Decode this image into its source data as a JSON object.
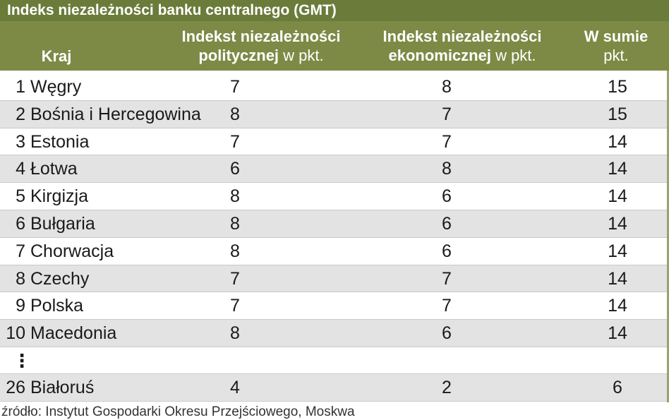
{
  "title": "Indeks niezależności banku centralnego (GMT)",
  "headers": {
    "kraj": "Kraj",
    "pol_line1": "Indekst niezależności",
    "pol_line2_bold": "politycznej",
    "pol_line2_unit": " w pkt.",
    "eko_line1": "Indekst niezależności",
    "eko_line2_bold": "ekonomicznej",
    "eko_line2_unit": " w pkt.",
    "sum_line1": "W sumie",
    "sum_line2": "pkt."
  },
  "rows": [
    {
      "rank": "1",
      "country": "Węgry",
      "pol": "7",
      "eko": "8",
      "sum": "15"
    },
    {
      "rank": "2",
      "country": "Bośnia i Hercegowina",
      "pol": "8",
      "eko": "7",
      "sum": "15"
    },
    {
      "rank": "3",
      "country": "Estonia",
      "pol": "7",
      "eko": "7",
      "sum": "14"
    },
    {
      "rank": "4",
      "country": "Łotwa",
      "pol": "6",
      "eko": "8",
      "sum": "14"
    },
    {
      "rank": "5",
      "country": "Kirgizja",
      "pol": "8",
      "eko": "6",
      "sum": "14"
    },
    {
      "rank": "6",
      "country": "Bułgaria",
      "pol": "8",
      "eko": "6",
      "sum": "14"
    },
    {
      "rank": "7",
      "country": "Chorwacja",
      "pol": "8",
      "eko": "6",
      "sum": "14"
    },
    {
      "rank": "8",
      "country": "Czechy",
      "pol": "7",
      "eko": "7",
      "sum": "14"
    },
    {
      "rank": "9",
      "country": "Polska",
      "pol": "7",
      "eko": "7",
      "sum": "14"
    },
    {
      "rank": "10",
      "country": "Macedonia",
      "pol": "8",
      "eko": "6",
      "sum": "14"
    }
  ],
  "ellipsis": "⋮",
  "last_row": {
    "rank": "26",
    "country": "Białoruś",
    "pol": "4",
    "eko": "2",
    "sum": "6"
  },
  "source": "źródło: Instytut Gospodarki Okresu Przejściowego, Moskwa",
  "colors": {
    "header_dark": "#6b7b3a",
    "header": "#7c8a45",
    "row_alt": "#e3e3e3"
  }
}
